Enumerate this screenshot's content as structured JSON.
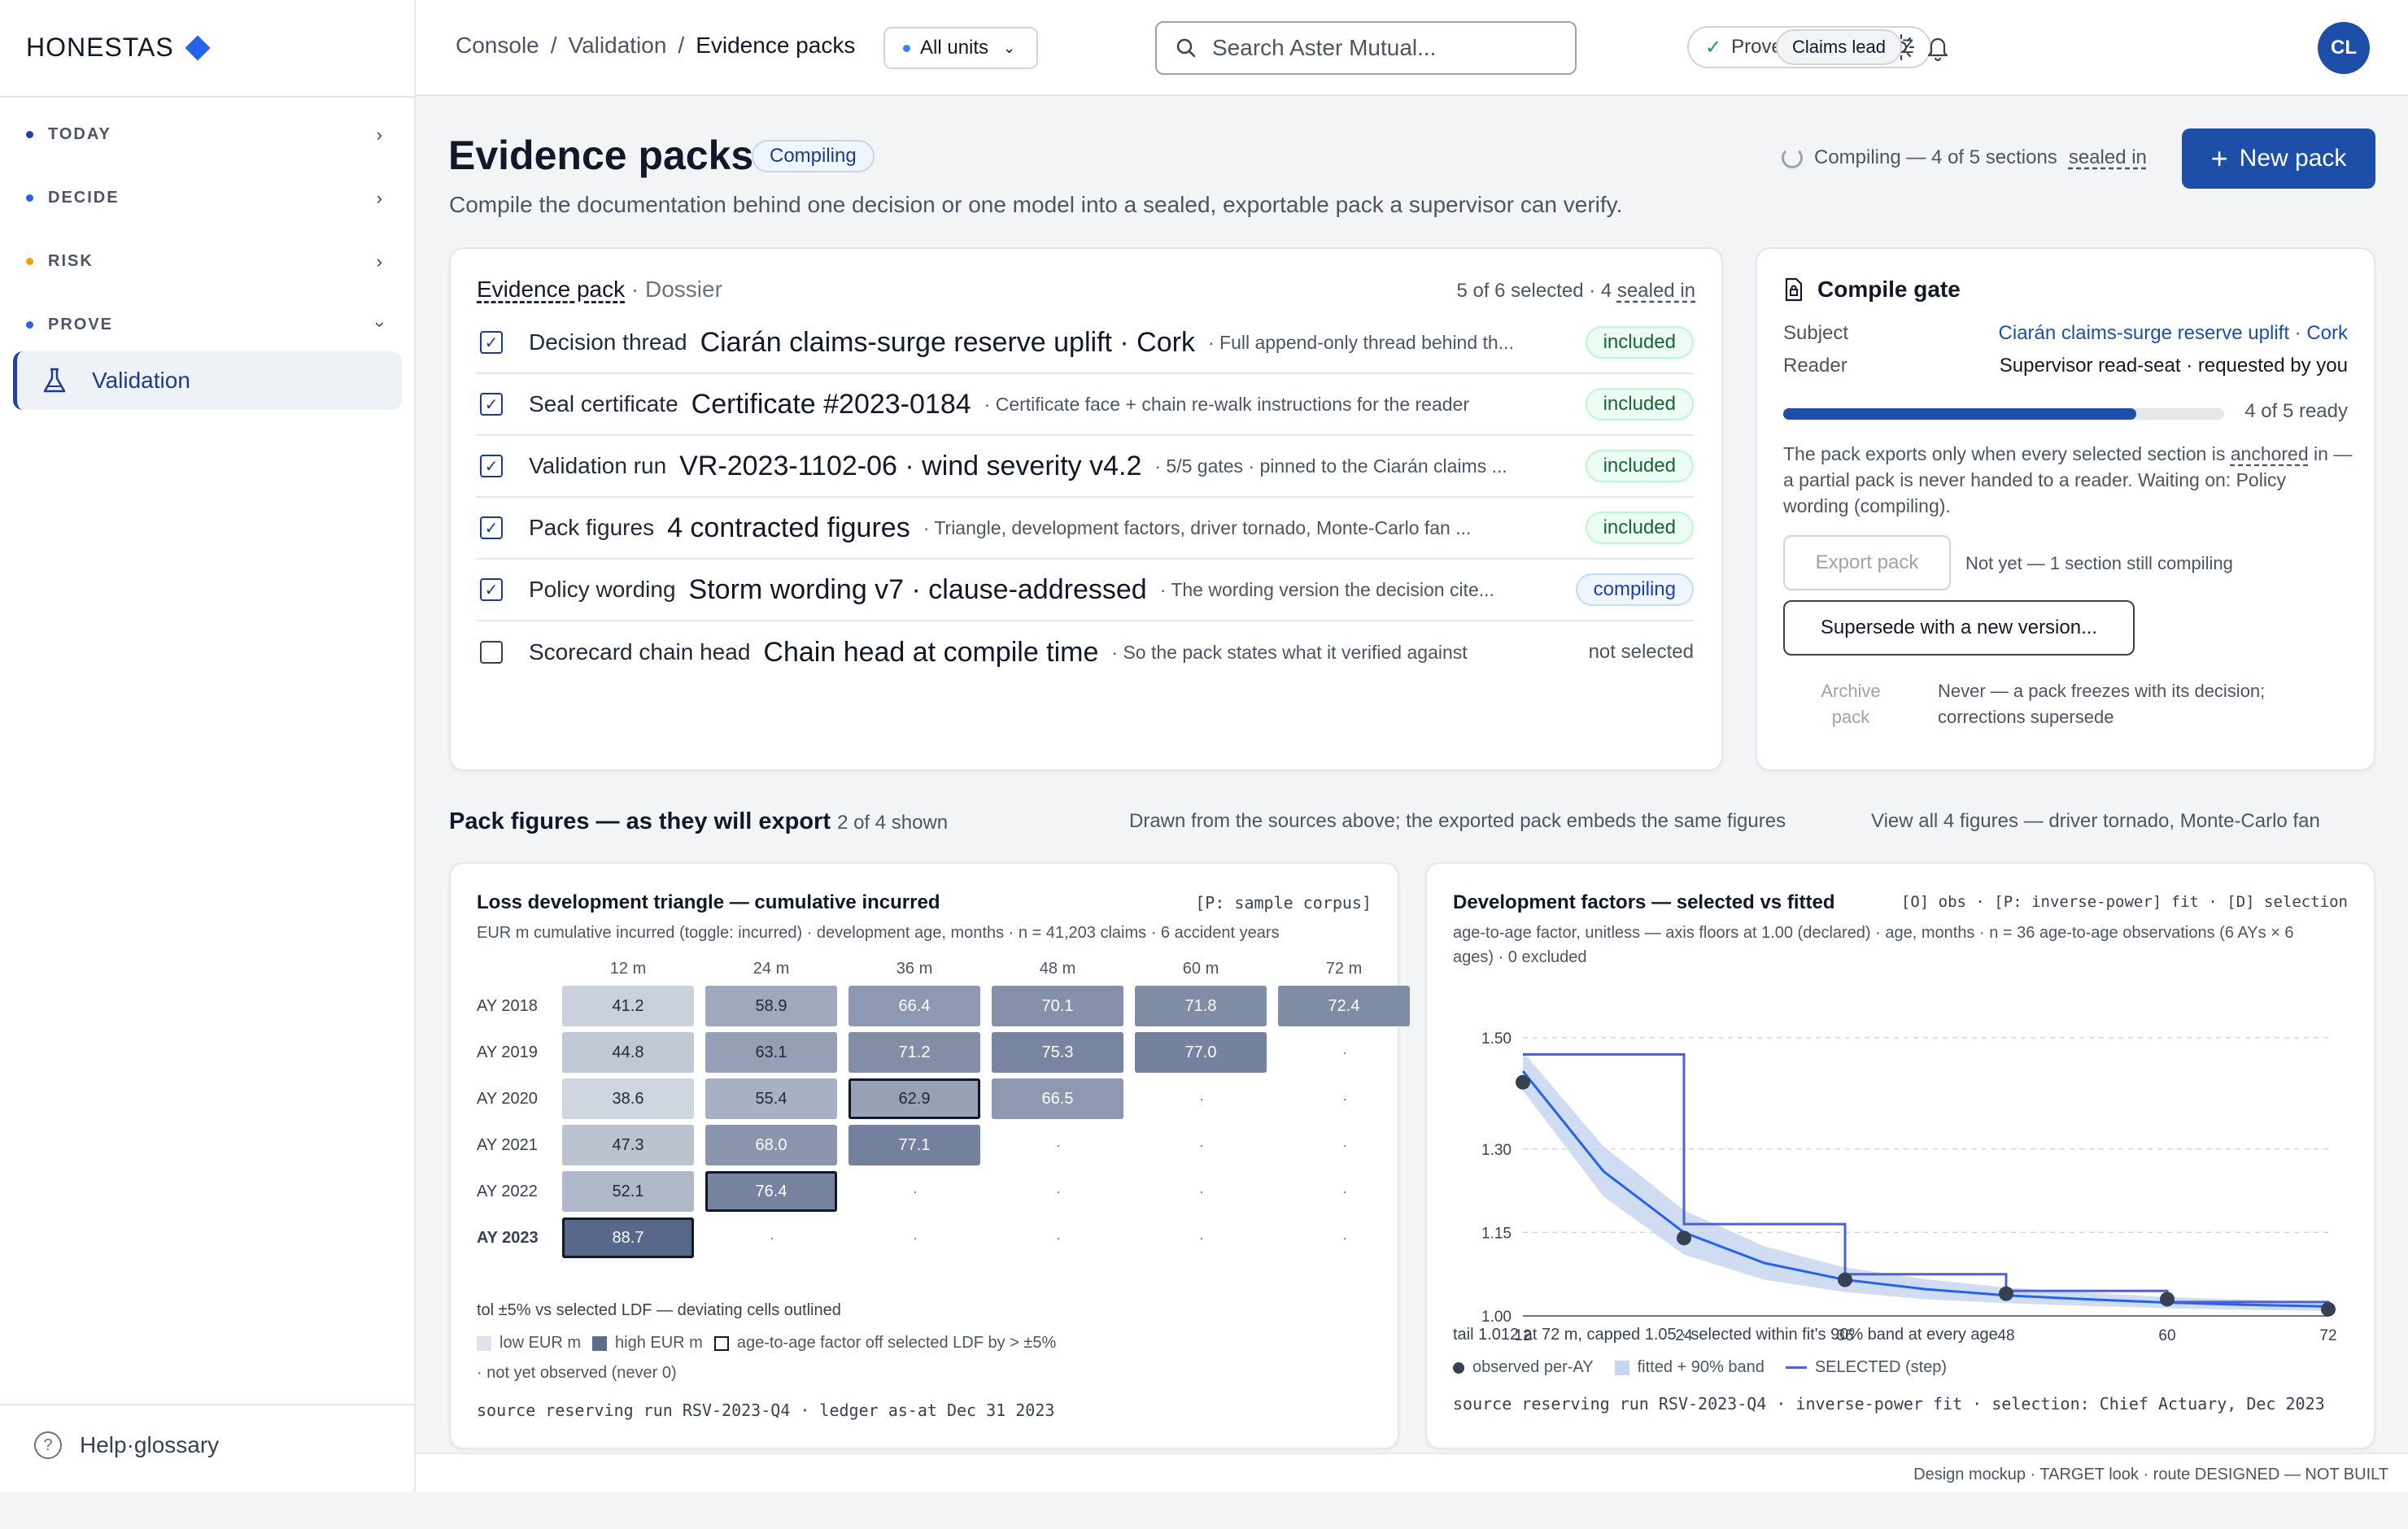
{
  "brand": {
    "name": "HONESTAS"
  },
  "nav": {
    "sections": [
      {
        "label": "TODAY",
        "dot": "#1e40af"
      },
      {
        "label": "DECIDE",
        "dot": "#2563eb"
      },
      {
        "label": "RISK",
        "dot": "#f59e0b"
      },
      {
        "label": "PROVE",
        "dot": "#2563eb"
      }
    ],
    "active": "Validation",
    "help": "Help·glossary"
  },
  "topbar": {
    "breadcrumb": [
      "Console",
      "Validation",
      "Evidence packs"
    ],
    "breadcrumb_sep": "/",
    "units": "All units",
    "search_placeholder": "Search Aster Mutual...",
    "provenance": "Provenance · 09:00Z",
    "role": "Claims lead",
    "avatar": "CL"
  },
  "page": {
    "title": "Evidence packs",
    "badge": "Compiling",
    "subtitle": "Compile the documentation behind one decision or one model into a sealed, exportable pack a supervisor can verify.",
    "compile_status": "Compiling — 4 of 5 sections",
    "compile_status_link": "sealed in",
    "new_button": "New pack"
  },
  "dossier": {
    "title": "Evidence pack",
    "subtitle": "· Dossier",
    "count": "5 of 6 selected · 4",
    "count_link": "sealed in",
    "rows": [
      {
        "label": "Decision thread",
        "title": "Ciarán claims-surge reserve uplift · Cork",
        "desc": "· Full append-only thread behind th...",
        "status": "included",
        "checked": true
      },
      {
        "label": "Seal certificate",
        "title": "Certificate #2023-0184",
        "desc": "· Certificate face + chain re-walk instructions for the reader",
        "status": "included",
        "checked": true
      },
      {
        "label": "Validation run",
        "title": "VR-2023-1102-06 · wind severity v4.2",
        "desc": "· 5/5 gates · pinned to the Ciarán claims ...",
        "status": "included",
        "checked": true
      },
      {
        "label": "Pack figures",
        "title": "4 contracted figures",
        "desc": "· Triangle, development factors, driver tornado, Monte-Carlo fan ...",
        "status": "included",
        "checked": true
      },
      {
        "label": "Policy wording",
        "title": "Storm wording v7 · clause-addressed",
        "desc": "· The wording version the decision cite...",
        "status": "compiling",
        "checked": true
      },
      {
        "label": "Scorecard chain head",
        "title": "Chain head at compile time",
        "desc": "· So the pack states what it verified against",
        "status": "not selected",
        "checked": false
      }
    ]
  },
  "gate": {
    "title": "Compile gate",
    "subject_label": "Subject",
    "subject_value": "Ciarán claims-surge reserve uplift · Cork",
    "reader_label": "Reader",
    "reader_value": "Supervisor read-seat · requested by you",
    "progress": 0.8,
    "progress_text": "4 of 5 ready",
    "note_a": "The pack exports only when every selected section is",
    "note_link": "anchored",
    "note_b": "in — a partial pack is never handed to a reader. Waiting on: Policy wording (compiling).",
    "export_button": "Export pack",
    "export_note": "Not yet — 1 section still compiling",
    "supersede_button": "Supersede with a new version...",
    "archive_label": "Archive pack",
    "archive_note": "Never — a pack freezes with its decision; corrections supersede"
  },
  "figures": {
    "heading": "Pack figures — as they will export",
    "shown": "2 of 4 shown",
    "note": "Drawn from the sources above; the exported pack embeds the same figures",
    "view_all": "View all 4 figures — driver tornado, Monte-Carlo fan"
  },
  "triangle": {
    "title": "Loss development triangle — cumulative incurred",
    "tag": "[P: sample corpus]",
    "subtitle": "EUR m cumulative incurred (toggle: incurred) · development age, months · n = 41,203 claims · 6 accident years",
    "columns": [
      "12 m",
      "24 m",
      "36 m",
      "48 m",
      "60 m",
      "72 m"
    ],
    "rows": [
      "AY 2018",
      "AY 2019",
      "AY 2020",
      "AY 2021",
      "AY 2022",
      "AY 2023"
    ],
    "values": [
      [
        41.2,
        58.9,
        66.4,
        70.1,
        71.8,
        72.4
      ],
      [
        44.8,
        63.1,
        71.2,
        75.3,
        77.0,
        null
      ],
      [
        38.6,
        55.4,
        62.9,
        66.5,
        null,
        null
      ],
      [
        47.3,
        68.0,
        77.1,
        null,
        null,
        null
      ],
      [
        52.1,
        76.4,
        null,
        null,
        null,
        null
      ],
      [
        88.7,
        null,
        null,
        null,
        null,
        null
      ]
    ],
    "outlined": [
      [
        2,
        2
      ],
      [
        4,
        1
      ],
      [
        5,
        0
      ]
    ],
    "empty_mark": "·",
    "tolerance": "tol ±5% vs selected LDF — deviating cells outlined",
    "legend": [
      "low EUR m",
      "high EUR m",
      "age-to-age factor off selected LDF by > ±5%",
      "· not yet observed (never 0)"
    ],
    "source": "source reserving run RSV-2023-Q4 · ledger as-at Dec 31 2023",
    "colors": {
      "low": "#c9d1de",
      "high": "#5b6c8d"
    }
  },
  "devfactors": {
    "title": "Development factors — selected vs fitted",
    "tag": "[O] obs · [P: inverse-power] fit · [D] selection",
    "subtitle": "age-to-age factor, unitless — axis floors at 1.00 (declared) · age, months · n = 36 age-to-age observations (6 AYs × 6 ages) · 0 excluded",
    "note": "tail 1.012 at 72 m, capped 1.05 · selected within fit's 90% band at every age",
    "legend": [
      "observed per-AY",
      "fitted + 90% band",
      "SELECTED (step)"
    ],
    "source": "source reserving run RSV-2023-Q4 · inverse-power fit · selection: Chief Actuary, Dec 2023"
  },
  "chart_data": {
    "type": "line",
    "title": "Development factors — selected vs fitted",
    "xlabel": "age, months",
    "ylabel": "age-to-age factor, unitless",
    "x": [
      12,
      24,
      36,
      48,
      60,
      72
    ],
    "ylim": [
      1.0,
      1.5
    ],
    "yticks": [
      1.0,
      1.15,
      1.3,
      1.5
    ],
    "series": [
      {
        "name": "observed per-AY",
        "values": [
          1.42,
          1.14,
          1.065,
          1.04,
          1.03,
          1.012
        ]
      },
      {
        "name": "SELECTED (step)",
        "values": [
          1.47,
          1.165,
          1.075,
          1.045,
          1.025,
          1.012
        ]
      }
    ],
    "fit": {
      "x": [
        12,
        18,
        24,
        30,
        36,
        42,
        48,
        54,
        60,
        66,
        72
      ],
      "y": [
        1.44,
        1.26,
        1.15,
        1.095,
        1.065,
        1.048,
        1.037,
        1.03,
        1.024,
        1.02,
        1.017
      ],
      "band": [
        0.035,
        0.045,
        0.04,
        0.03,
        0.022,
        0.018,
        0.014,
        0.012,
        0.01,
        0.009,
        0.008
      ]
    },
    "colors": {
      "observed": "#374151",
      "fit": "#2563eb",
      "band": "#c7d6f0",
      "selected": "#4f5fd6"
    }
  },
  "footer": "Design mockup · TARGET look · route DESIGNED — NOT BUILT"
}
